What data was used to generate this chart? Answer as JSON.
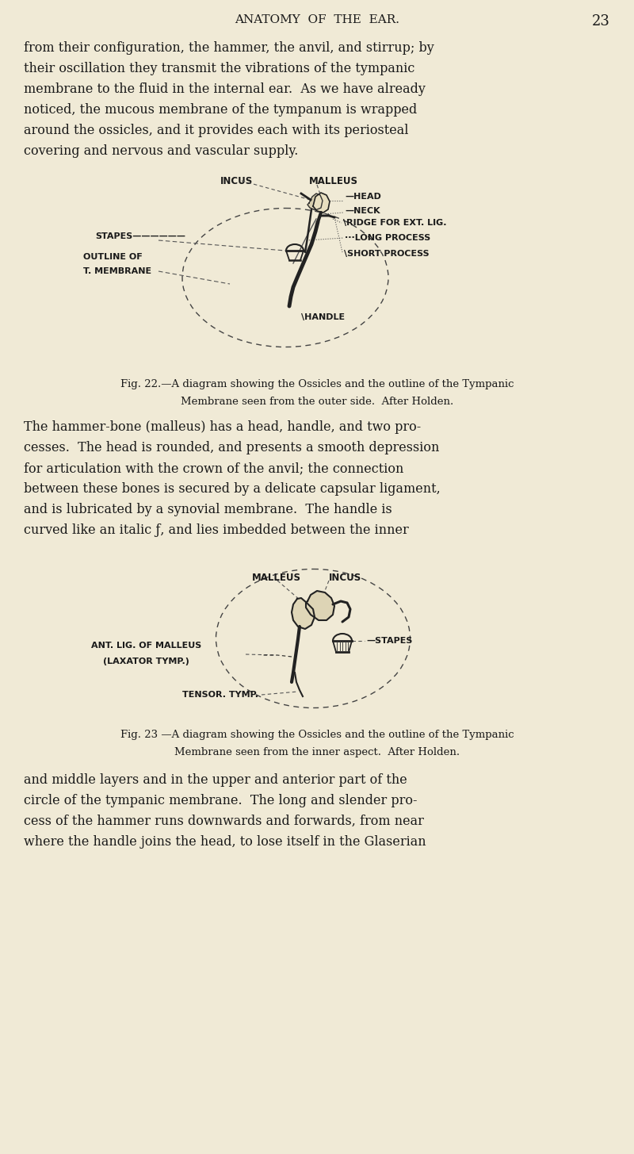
{
  "bg_color": "#f0ead6",
  "text_color": "#1a1a1a",
  "page_header": "ANATOMY  OF  THE  EAR.",
  "page_number": "23",
  "paragraph1": "from their configuration, the hammer, the anvil, and stirrup; by\ntheir oscillation they transmit the vibrations of the tympanic\nmembrane to the fluid in the internal ear.  As we have already\nnoticed, the mucous membrane of the tympanum is wrapped\naround the ossicles, and it provides each with its periosteal\ncovering and nervous and vascular supply.",
  "fig22_caption_line1": "Fig. 22.—A diagram showing the Ossicles and the outline of the Tympanic",
  "fig22_caption_line2": "Membrane seen from the outer side.  After Holden.",
  "paragraph2": "The hammer-bone (malleus) has a head, handle, and two pro-\ncesses.  The head is rounded, and presents a smooth depression\nfor articulation with the crown of the anvil; the connection\nbetween these bones is secured by a delicate capsular ligament,\nand is lubricated by a synovial membrane.  The handle is\ncurved like an italic ƒ, and lies imbedded between the inner",
  "fig23_caption_line1": "Fig. 23 —A diagram showing the Ossicles and the outline of the Tympanic",
  "fig23_caption_line2": "Membrane seen from the inner aspect.  After Holden.",
  "paragraph3": "and middle layers and in the upper and anterior part of the\ncircle of the tympanic membrane.  The long and slender pro-\ncess of the hammer runs downwards and forwards, from near\nwhere the handle joins the head, to lose itself in the Glaserian",
  "label_fontsize": 8.0,
  "body_fontsize": 11.5,
  "caption_fontsize": 9.5
}
